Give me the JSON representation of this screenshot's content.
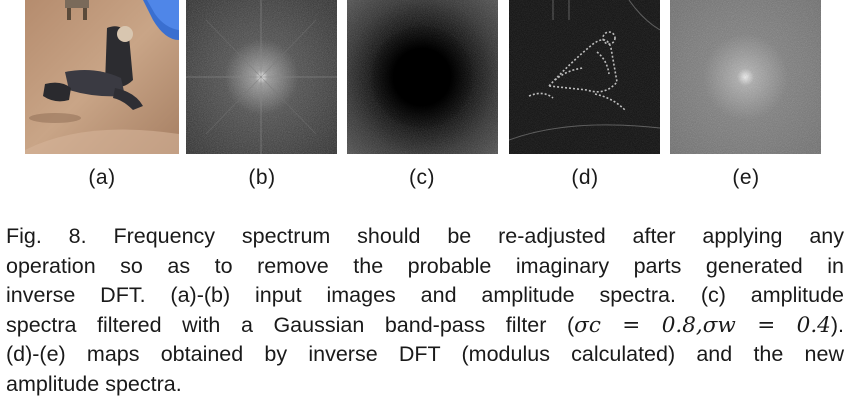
{
  "figure": {
    "panels": [
      {
        "id": "a",
        "label": "(a)",
        "content": "photograph of a man crouching on pavement beside a pool"
      },
      {
        "id": "b",
        "label": "(b)",
        "content": "amplitude spectrum"
      },
      {
        "id": "c",
        "label": "(c)",
        "content": "band-pass filtered amplitude spectrum"
      },
      {
        "id": "d",
        "label": "(d)",
        "content": "map from inverse DFT (modulus)"
      },
      {
        "id": "e",
        "label": "(e)",
        "content": "new amplitude spectrum"
      }
    ]
  },
  "caption": {
    "line1": "Fig. 8. Frequency spectrum should be re-adjusted after applying any",
    "line2": "operation so as to remove the probable imaginary parts generated in",
    "line3": "inverse DFT. (a)-(b) input images and amplitude spectra. (c) amplitude",
    "line4_pre": "spectra filtered with a Gaussian band-pass filter (",
    "line4_math": "σc = 0.8,σw = 0.4",
    "line4_post": ").",
    "line5": "(d)-(e) maps obtained by inverse DFT (modulus calculated) and the new",
    "line6": "amplitude spectra."
  }
}
